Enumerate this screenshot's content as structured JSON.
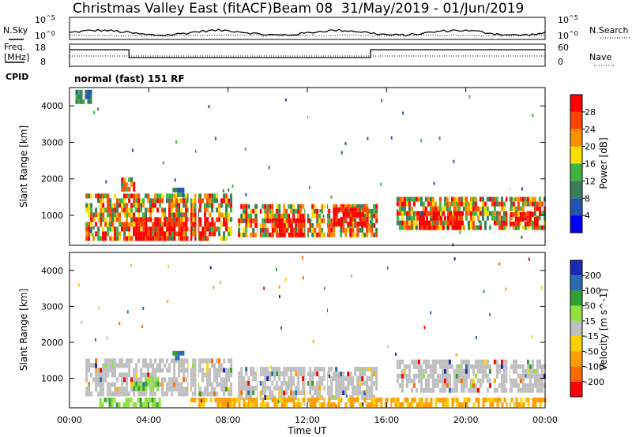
{
  "title": {
    "site": "Christmas Valley East (fitACF)",
    "beam": "Beam 08",
    "dates": "31/May/2019 - 01/Jun/2019"
  },
  "noise_panel": {
    "left_label": "N.Sky",
    "right_label": "N.Search",
    "left_ticks": [
      "10^5",
      "10^0"
    ],
    "right_ticks": [
      "10^5",
      "10^0"
    ]
  },
  "freq_panel": {
    "left_label_1": "Freq.",
    "left_label_2": "[MHz]",
    "right_label": "Nave",
    "left_ticks": [
      "18",
      "8"
    ],
    "right_ticks": [
      "60",
      "0"
    ]
  },
  "cpid": {
    "label": "CPID",
    "value": "normal (fast) 151 RF"
  },
  "colors": {
    "power": [
      "#0000ff",
      "#2255b3",
      "#3a7d5a",
      "#3fb43f",
      "#ffe000",
      "#ff9000",
      "#ff4400",
      "#ff0000"
    ],
    "velocity": [
      "#ff0000",
      "#ff6a00",
      "#ffa000",
      "#ffd000",
      "#bfbfbf",
      "#90e040",
      "#30a030",
      "#2a6ab0",
      "#1a2ab5"
    ],
    "ground_scatter": "#bfbfbf"
  },
  "chart_data": [
    {
      "type": "heatmap",
      "title": "",
      "xlabel": "",
      "ylabel": "Slant Range [km]",
      "xlim": [
        "00:00",
        "00:00"
      ],
      "ylim": [
        180,
        4500
      ],
      "y_ticks": [
        "1000",
        "2000",
        "3000",
        "4000"
      ],
      "colorbar": {
        "label": "Power [dB]",
        "ticks": [
          "4",
          "8",
          "12",
          "16",
          "20",
          "24",
          "28"
        ],
        "range": [
          0,
          32
        ]
      },
      "regions": [
        {
          "t0": 0.8,
          "t1": 8.2,
          "r0": 300,
          "r1": 1500,
          "level": "mixed"
        },
        {
          "t0": 3.2,
          "t1": 7.2,
          "r0": 300,
          "r1": 900,
          "level": "strong"
        },
        {
          "t0": 8.5,
          "t1": 15.5,
          "r0": 400,
          "r1": 1200,
          "level": "mixed"
        },
        {
          "t0": 10.2,
          "t1": 12.0,
          "r0": 400,
          "r1": 800,
          "level": "strong"
        },
        {
          "t0": 13.3,
          "t1": 15.0,
          "r0": 700,
          "r1": 1100,
          "level": "strong"
        },
        {
          "t0": 16.5,
          "t1": 24.0,
          "r0": 600,
          "r1": 1500,
          "level": "mixed"
        },
        {
          "t0": 17.5,
          "t1": 19.8,
          "r0": 600,
          "r1": 1000,
          "level": "strong"
        },
        {
          "t0": 22.0,
          "t1": 23.6,
          "r0": 700,
          "r1": 1000,
          "level": "strong"
        },
        {
          "t0": 2.6,
          "t1": 3.3,
          "r0": 1650,
          "r1": 1950,
          "level": "mixed"
        },
        {
          "t0": 5.2,
          "t1": 5.7,
          "r0": 1500,
          "r1": 1700,
          "level": "weak"
        },
        {
          "t0": 0.3,
          "t1": 1.1,
          "r0": 4050,
          "r1": 4350,
          "level": "weak"
        }
      ]
    },
    {
      "type": "heatmap",
      "title": "",
      "xlabel": "Time UT",
      "ylabel": "Slant Range [km]",
      "xlim": [
        "00:00",
        "00:00"
      ],
      "ylim": [
        180,
        4500
      ],
      "x_ticks": [
        "00:00",
        "04:00",
        "08:00",
        "12:00",
        "16:00",
        "20:00",
        "00:00"
      ],
      "y_ticks": [
        "1000",
        "2000",
        "3000",
        "4000"
      ],
      "colorbar": {
        "label": "Velocity [m s^-1]",
        "ticks": [
          "200",
          "100",
          "50",
          "15",
          "-15",
          "-50",
          "-100",
          "-200"
        ],
        "range": [
          -250,
          250
        ]
      },
      "regions": [
        {
          "t0": 0.8,
          "t1": 8.2,
          "r0": 500,
          "r1": 1500,
          "level": "ground"
        },
        {
          "t0": 8.5,
          "t1": 15.5,
          "r0": 400,
          "r1": 1200,
          "level": "ground"
        },
        {
          "t0": 16.5,
          "t1": 24.0,
          "r0": 600,
          "r1": 1500,
          "level": "ground"
        },
        {
          "t0": 1.5,
          "t1": 4.5,
          "r0": 200,
          "r1": 400,
          "level": "green"
        },
        {
          "t0": 6.0,
          "t1": 24.0,
          "r0": 200,
          "r1": 350,
          "level": "orange"
        },
        {
          "t0": 5.2,
          "t1": 5.7,
          "r0": 1500,
          "r1": 1750,
          "level": "blue"
        },
        {
          "t0": 3.2,
          "t1": 4.5,
          "r0": 650,
          "r1": 950,
          "level": "green"
        }
      ]
    }
  ]
}
